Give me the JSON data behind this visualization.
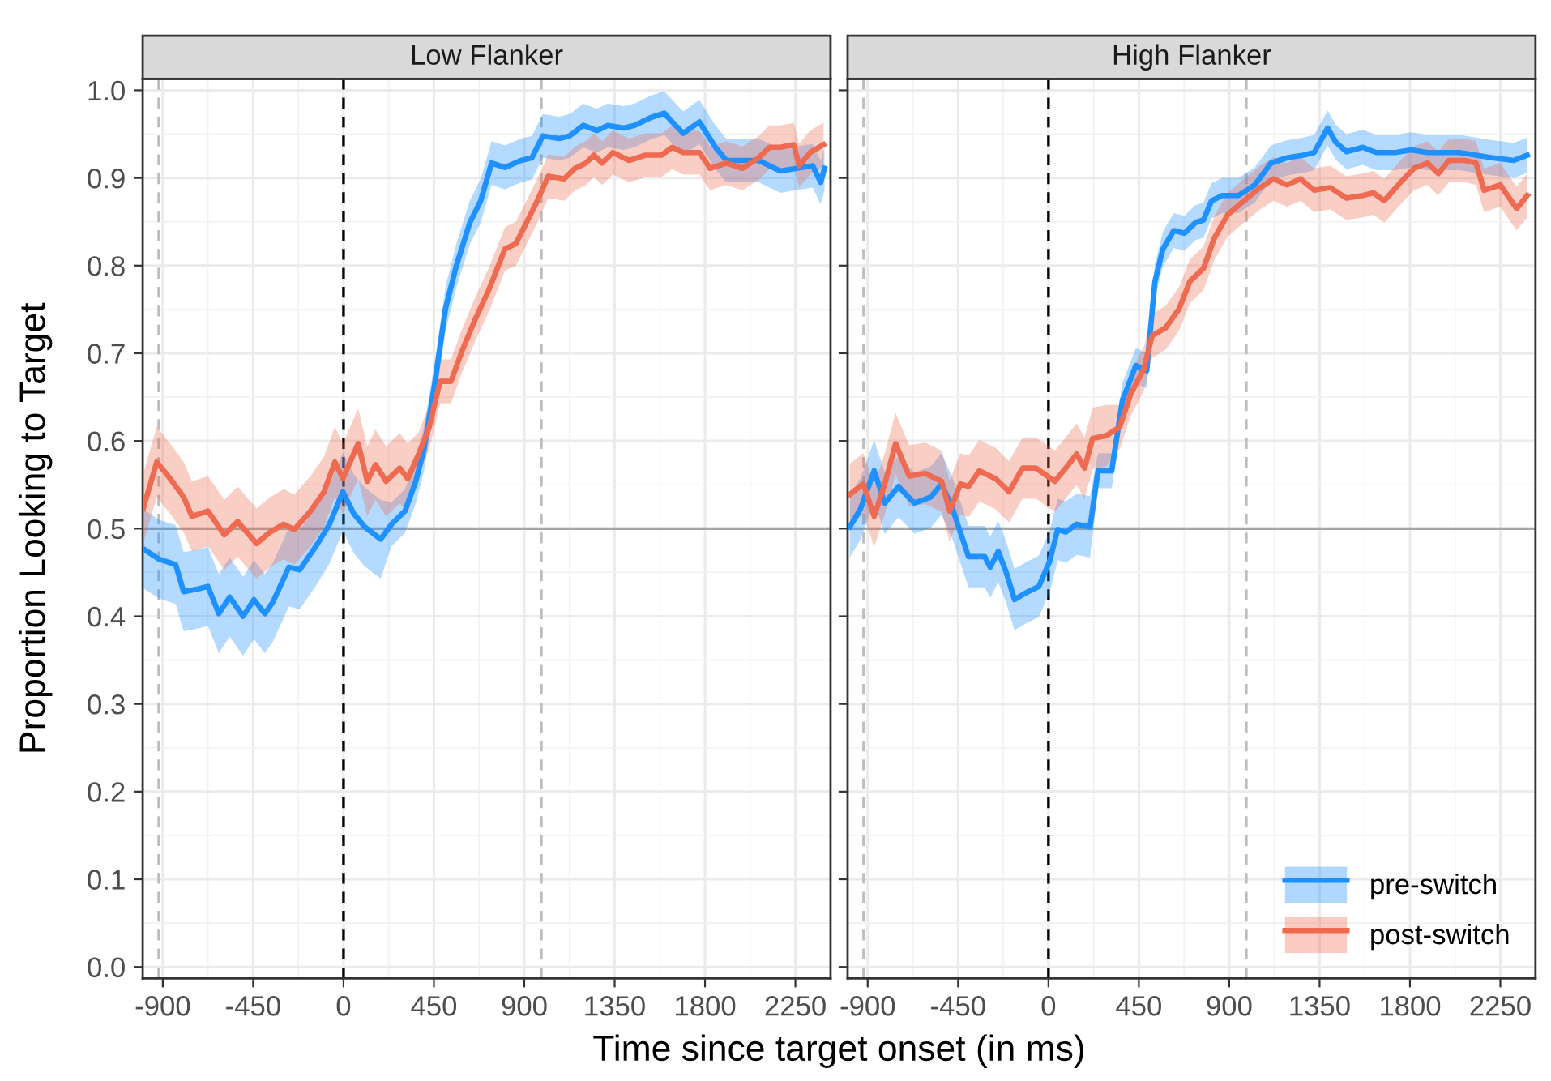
{
  "chart_data": [
    {
      "type": "line",
      "title": "Low Flanker",
      "xlabel": "Time since target onset (in ms)",
      "ylabel": "Proportion Looking to Target",
      "xlim": [
        -1000,
        2425
      ],
      "ylim": [
        -0.013,
        1.013
      ],
      "xticks": [
        -900,
        -450,
        0,
        450,
        900,
        1350,
        1800,
        2250
      ],
      "yticks": [
        {
          "value": 0,
          "label": "0.0"
        },
        0.1,
        0.2,
        0.3,
        0.4,
        0.5,
        0.6,
        0.7,
        0.8,
        0.9,
        {
          "value": 1,
          "label": "1.0"
        }
      ],
      "grid": true,
      "legend": false,
      "line_style": "solid",
      "marker": "none",
      "ref_lines": [
        {
          "axis": "x",
          "value": 0,
          "color": "#000000",
          "line_style": "dashed"
        },
        {
          "axis": "x",
          "value": -920,
          "color": "#bdbdbd",
          "line_style": "dashed"
        },
        {
          "axis": "x",
          "value": 985,
          "color": "#bdbdbd",
          "line_style": "dashed"
        },
        {
          "axis": "y",
          "value": 0.5,
          "color": "#a6a6a6",
          "line_style": "solid"
        }
      ],
      "series": [
        {
          "color": "#1e90ff",
          "x": [
            -997,
            -917,
            -836,
            -796,
            -728,
            -675,
            -621,
            -567,
            -500,
            -446,
            -392,
            -352,
            -272,
            -218,
            -137,
            -70,
            -3,
            51,
            105,
            185,
            239,
            306,
            360,
            401,
            454,
            508,
            562,
            629,
            683,
            737,
            804,
            884,
            938,
            992,
            1073,
            1126,
            1194,
            1261,
            1315,
            1395,
            1449,
            1530,
            1597,
            1637,
            1691,
            1772,
            1852,
            1906,
            1987,
            2067,
            2175,
            2255,
            2336,
            2376,
            2395
          ],
          "values": [
            0.477,
            0.465,
            0.459,
            0.428,
            0.431,
            0.434,
            0.403,
            0.422,
            0.4,
            0.419,
            0.403,
            0.416,
            0.456,
            0.453,
            0.48,
            0.505,
            0.542,
            0.517,
            0.502,
            0.488,
            0.505,
            0.52,
            0.554,
            0.591,
            0.665,
            0.751,
            0.8,
            0.849,
            0.874,
            0.917,
            0.912,
            0.92,
            0.923,
            0.948,
            0.945,
            0.948,
            0.96,
            0.954,
            0.96,
            0.957,
            0.96,
            0.969,
            0.974,
            0.964,
            0.951,
            0.964,
            0.935,
            0.92,
            0.92,
            0.92,
            0.908,
            0.911,
            0.914,
            0.895,
            0.911
          ],
          "lower": [
            0.432,
            0.42,
            0.414,
            0.383,
            0.386,
            0.389,
            0.358,
            0.377,
            0.355,
            0.374,
            0.358,
            0.371,
            0.411,
            0.408,
            0.435,
            0.46,
            0.497,
            0.472,
            0.457,
            0.443,
            0.48,
            0.495,
            0.529,
            0.566,
            0.64,
            0.726,
            0.775,
            0.824,
            0.849,
            0.892,
            0.887,
            0.895,
            0.898,
            0.923,
            0.92,
            0.923,
            0.935,
            0.929,
            0.935,
            0.932,
            0.935,
            0.944,
            0.949,
            0.939,
            0.926,
            0.939,
            0.91,
            0.895,
            0.895,
            0.895,
            0.883,
            0.886,
            0.889,
            0.87,
            0.886
          ],
          "upper": [
            0.522,
            0.51,
            0.504,
            0.473,
            0.476,
            0.479,
            0.448,
            0.467,
            0.445,
            0.464,
            0.448,
            0.461,
            0.501,
            0.498,
            0.525,
            0.55,
            0.587,
            0.562,
            0.547,
            0.533,
            0.53,
            0.545,
            0.579,
            0.616,
            0.69,
            0.776,
            0.825,
            0.874,
            0.899,
            0.942,
            0.937,
            0.945,
            0.948,
            0.973,
            0.97,
            0.973,
            0.985,
            0.979,
            0.985,
            0.982,
            0.985,
            0.994,
            0.999,
            0.989,
            0.976,
            0.989,
            0.96,
            0.945,
            0.945,
            0.945,
            0.933,
            0.936,
            0.939,
            0.92,
            0.936
          ]
        },
        {
          "color": "#ee6a50",
          "x": [
            -997,
            -930,
            -863,
            -796,
            -755,
            -675,
            -594,
            -527,
            -433,
            -366,
            -298,
            -245,
            -164,
            -97,
            -43,
            -3,
            73,
            118,
            159,
            212,
            280,
            320,
            374,
            427,
            481,
            535,
            589,
            656,
            723,
            804,
            858,
            911,
            965,
            1019,
            1099,
            1153,
            1207,
            1247,
            1288,
            1341,
            1422,
            1503,
            1583,
            1637,
            1691,
            1772,
            1825,
            1906,
            1987,
            2067,
            2121,
            2175,
            2242,
            2269,
            2323,
            2390
          ],
          "values": [
            0.523,
            0.576,
            0.557,
            0.536,
            0.514,
            0.52,
            0.493,
            0.508,
            0.483,
            0.496,
            0.505,
            0.499,
            0.52,
            0.542,
            0.576,
            0.557,
            0.597,
            0.554,
            0.573,
            0.554,
            0.569,
            0.557,
            0.585,
            0.616,
            0.668,
            0.668,
            0.702,
            0.739,
            0.772,
            0.819,
            0.825,
            0.849,
            0.874,
            0.902,
            0.899,
            0.911,
            0.917,
            0.926,
            0.917,
            0.929,
            0.92,
            0.926,
            0.926,
            0.935,
            0.929,
            0.929,
            0.911,
            0.917,
            0.911,
            0.923,
            0.935,
            0.935,
            0.938,
            0.914,
            0.929,
            0.938
          ],
          "lower": [
            0.483,
            0.536,
            0.517,
            0.496,
            0.474,
            0.48,
            0.453,
            0.468,
            0.443,
            0.456,
            0.465,
            0.459,
            0.48,
            0.502,
            0.536,
            0.517,
            0.557,
            0.514,
            0.533,
            0.514,
            0.529,
            0.517,
            0.56,
            0.591,
            0.643,
            0.643,
            0.677,
            0.714,
            0.747,
            0.794,
            0.8,
            0.824,
            0.849,
            0.877,
            0.874,
            0.886,
            0.892,
            0.901,
            0.892,
            0.904,
            0.895,
            0.901,
            0.901,
            0.91,
            0.904,
            0.904,
            0.886,
            0.892,
            0.886,
            0.898,
            0.91,
            0.91,
            0.913,
            0.889,
            0.904,
            0.913
          ],
          "upper": [
            0.563,
            0.616,
            0.597,
            0.576,
            0.554,
            0.56,
            0.533,
            0.548,
            0.523,
            0.536,
            0.545,
            0.539,
            0.56,
            0.582,
            0.616,
            0.597,
            0.637,
            0.594,
            0.613,
            0.594,
            0.609,
            0.597,
            0.61,
            0.641,
            0.693,
            0.693,
            0.727,
            0.764,
            0.797,
            0.844,
            0.85,
            0.874,
            0.899,
            0.927,
            0.924,
            0.936,
            0.942,
            0.951,
            0.942,
            0.954,
            0.945,
            0.951,
            0.951,
            0.96,
            0.954,
            0.954,
            0.936,
            0.942,
            0.936,
            0.948,
            0.96,
            0.96,
            0.963,
            0.939,
            0.954,
            0.963
          ]
        }
      ]
    },
    {
      "type": "line",
      "title": "High Flanker",
      "xlim": [
        -1000,
        2425
      ],
      "ylim": [
        -0.013,
        1.013
      ],
      "xticks": [
        -900,
        -450,
        0,
        450,
        900,
        1350,
        1800,
        2250
      ],
      "yticks": [
        0,
        0.1,
        0.2,
        0.3,
        0.4,
        0.5,
        0.6,
        0.7,
        0.8,
        0.9,
        1
      ],
      "tick_labels": "x",
      "grid": true,
      "legend": "bottom right",
      "line_style": "solid",
      "marker": "none",
      "ref_lines": [
        {
          "axis": "x",
          "value": 0,
          "color": "#000000",
          "line_style": "dashed"
        },
        {
          "axis": "x",
          "value": -920,
          "color": "#bdbdbd",
          "line_style": "dashed"
        },
        {
          "axis": "x",
          "value": 985,
          "color": "#bdbdbd",
          "line_style": "dashed"
        },
        {
          "axis": "y",
          "value": 0.5,
          "color": "#a6a6a6",
          "line_style": "solid"
        }
      ],
      "series": [
        {
          "name": "pre-switch",
          "color": "#1e90ff",
          "x": [
            -989,
            -935,
            -868,
            -815,
            -747,
            -667,
            -586,
            -532,
            -478,
            -398,
            -317,
            -290,
            -250,
            -210,
            -169,
            -102,
            -48,
            5,
            46,
            86,
            140,
            207,
            247,
            315,
            368,
            435,
            489,
            530,
            570,
            624,
            677,
            731,
            772,
            812,
            866,
            946,
            1027,
            1108,
            1188,
            1269,
            1323,
            1390,
            1430,
            1484,
            1565,
            1632,
            1726,
            1806,
            1887,
            1968,
            2048,
            2129,
            2210,
            2317,
            2384
          ],
          "values": [
            0.502,
            0.523,
            0.566,
            0.529,
            0.548,
            0.529,
            0.536,
            0.551,
            0.523,
            0.468,
            0.468,
            0.456,
            0.474,
            0.45,
            0.419,
            0.428,
            0.434,
            0.462,
            0.499,
            0.496,
            0.505,
            0.502,
            0.566,
            0.566,
            0.646,
            0.686,
            0.68,
            0.782,
            0.819,
            0.84,
            0.837,
            0.849,
            0.852,
            0.874,
            0.88,
            0.88,
            0.892,
            0.917,
            0.923,
            0.926,
            0.929,
            0.957,
            0.941,
            0.93,
            0.935,
            0.929,
            0.929,
            0.932,
            0.929,
            0.929,
            0.929,
            0.926,
            0.923,
            0.92,
            0.926
          ],
          "lower": [
            0.467,
            0.488,
            0.531,
            0.494,
            0.513,
            0.494,
            0.501,
            0.516,
            0.488,
            0.433,
            0.433,
            0.421,
            0.439,
            0.415,
            0.384,
            0.393,
            0.399,
            0.427,
            0.464,
            0.461,
            0.47,
            0.467,
            0.546,
            0.546,
            0.626,
            0.666,
            0.66,
            0.762,
            0.799,
            0.82,
            0.817,
            0.829,
            0.832,
            0.854,
            0.86,
            0.86,
            0.872,
            0.897,
            0.903,
            0.906,
            0.909,
            0.937,
            0.921,
            0.91,
            0.915,
            0.909,
            0.909,
            0.912,
            0.909,
            0.909,
            0.909,
            0.906,
            0.903,
            0.9,
            0.906
          ],
          "upper": [
            0.537,
            0.558,
            0.601,
            0.564,
            0.583,
            0.564,
            0.571,
            0.586,
            0.558,
            0.503,
            0.503,
            0.491,
            0.509,
            0.485,
            0.454,
            0.463,
            0.469,
            0.497,
            0.534,
            0.531,
            0.54,
            0.537,
            0.586,
            0.586,
            0.666,
            0.706,
            0.7,
            0.802,
            0.839,
            0.86,
            0.857,
            0.869,
            0.872,
            0.894,
            0.9,
            0.9,
            0.912,
            0.937,
            0.943,
            0.946,
            0.949,
            0.977,
            0.961,
            0.95,
            0.955,
            0.949,
            0.949,
            0.952,
            0.949,
            0.949,
            0.949,
            0.946,
            0.943,
            0.94,
            0.946
          ]
        },
        {
          "name": "post-switch",
          "color": "#ee6a50",
          "x": [
            -989,
            -922,
            -868,
            -815,
            -761,
            -694,
            -613,
            -532,
            -492,
            -438,
            -398,
            -344,
            -263,
            -196,
            -129,
            -62,
            32,
            86,
            140,
            180,
            220,
            288,
            355,
            409,
            476,
            516,
            583,
            651,
            704,
            772,
            825,
            892,
            973,
            1054,
            1121,
            1188,
            1255,
            1323,
            1403,
            1484,
            1565,
            1618,
            1672,
            1753,
            1820,
            1887,
            1941,
            1995,
            2075,
            2129,
            2169,
            2250,
            2331,
            2384
          ],
          "values": [
            0.539,
            0.551,
            0.514,
            0.551,
            0.597,
            0.56,
            0.563,
            0.554,
            0.52,
            0.551,
            0.548,
            0.566,
            0.557,
            0.542,
            0.569,
            0.569,
            0.554,
            0.569,
            0.585,
            0.569,
            0.603,
            0.606,
            0.616,
            0.653,
            0.683,
            0.72,
            0.729,
            0.751,
            0.782,
            0.797,
            0.831,
            0.858,
            0.874,
            0.889,
            0.899,
            0.892,
            0.899,
            0.886,
            0.889,
            0.877,
            0.88,
            0.883,
            0.874,
            0.895,
            0.911,
            0.917,
            0.905,
            0.92,
            0.92,
            0.917,
            0.886,
            0.892,
            0.865,
            0.88
          ],
          "lower": [
            0.504,
            0.516,
            0.479,
            0.516,
            0.562,
            0.525,
            0.528,
            0.519,
            0.485,
            0.516,
            0.513,
            0.531,
            0.522,
            0.507,
            0.534,
            0.534,
            0.519,
            0.534,
            0.55,
            0.534,
            0.568,
            0.571,
            0.591,
            0.628,
            0.658,
            0.695,
            0.704,
            0.726,
            0.757,
            0.772,
            0.806,
            0.833,
            0.849,
            0.864,
            0.874,
            0.867,
            0.874,
            0.861,
            0.864,
            0.852,
            0.855,
            0.858,
            0.849,
            0.87,
            0.886,
            0.892,
            0.88,
            0.895,
            0.895,
            0.892,
            0.861,
            0.867,
            0.84,
            0.855
          ],
          "upper": [
            0.574,
            0.586,
            0.549,
            0.586,
            0.632,
            0.595,
            0.598,
            0.589,
            0.555,
            0.586,
            0.583,
            0.601,
            0.592,
            0.577,
            0.604,
            0.604,
            0.589,
            0.604,
            0.62,
            0.604,
            0.638,
            0.641,
            0.641,
            0.678,
            0.708,
            0.745,
            0.754,
            0.776,
            0.807,
            0.822,
            0.856,
            0.883,
            0.899,
            0.914,
            0.924,
            0.917,
            0.924,
            0.911,
            0.914,
            0.902,
            0.905,
            0.908,
            0.899,
            0.92,
            0.936,
            0.942,
            0.93,
            0.945,
            0.945,
            0.942,
            0.911,
            0.917,
            0.89,
            0.905
          ]
        }
      ]
    }
  ]
}
